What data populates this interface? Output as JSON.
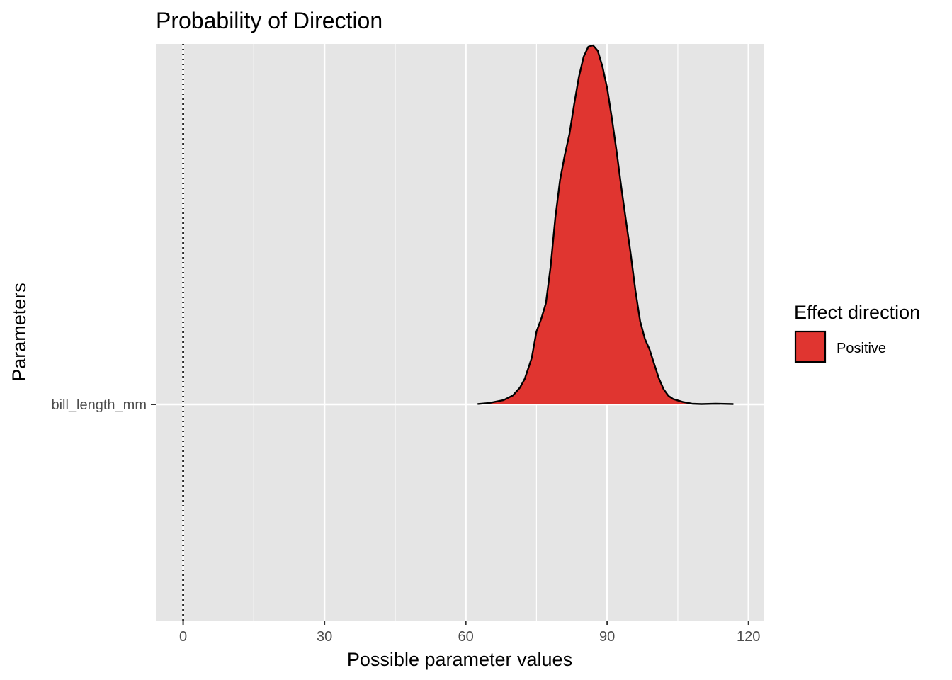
{
  "chart_data": {
    "type": "area",
    "title": "Probability of Direction",
    "xlabel": "Possible parameter values",
    "ylabel": "Parameters",
    "xlim": [
      -5.8,
      123.2
    ],
    "x_ticks": [
      0,
      30,
      60,
      90,
      120
    ],
    "x_minor_ticks": [
      15,
      45,
      75,
      105
    ],
    "reference_line": 0,
    "categories": [
      "bill_length_mm"
    ],
    "grid": true,
    "legend": {
      "title": "Effect direction",
      "position": "right",
      "entries": [
        {
          "label": "Positive",
          "color": "#E03530"
        }
      ]
    },
    "series": [
      {
        "name": "Positive",
        "category": "bill_length_mm",
        "color": "#E03530",
        "density": {
          "x": [
            62.5,
            65,
            68,
            70,
            71.5,
            72.5,
            73.5,
            74,
            75,
            76,
            77,
            78,
            79,
            80,
            81,
            82,
            83,
            84,
            85,
            86,
            87,
            88,
            89,
            90,
            91,
            92,
            93,
            94,
            95,
            96,
            97,
            98,
            99,
            100,
            101,
            102,
            103,
            104,
            105,
            106,
            108,
            110,
            113,
            116.8
          ],
          "y": [
            0.001,
            0.004,
            0.012,
            0.025,
            0.047,
            0.071,
            0.11,
            0.13,
            0.203,
            0.238,
            0.282,
            0.384,
            0.52,
            0.625,
            0.694,
            0.753,
            0.836,
            0.912,
            0.968,
            0.996,
            1.0,
            0.985,
            0.941,
            0.881,
            0.797,
            0.705,
            0.605,
            0.511,
            0.419,
            0.317,
            0.232,
            0.183,
            0.153,
            0.112,
            0.072,
            0.042,
            0.024,
            0.015,
            0.011,
            0.007,
            0.002,
            0.001,
            0.002,
            0.001
          ]
        }
      }
    ]
  }
}
